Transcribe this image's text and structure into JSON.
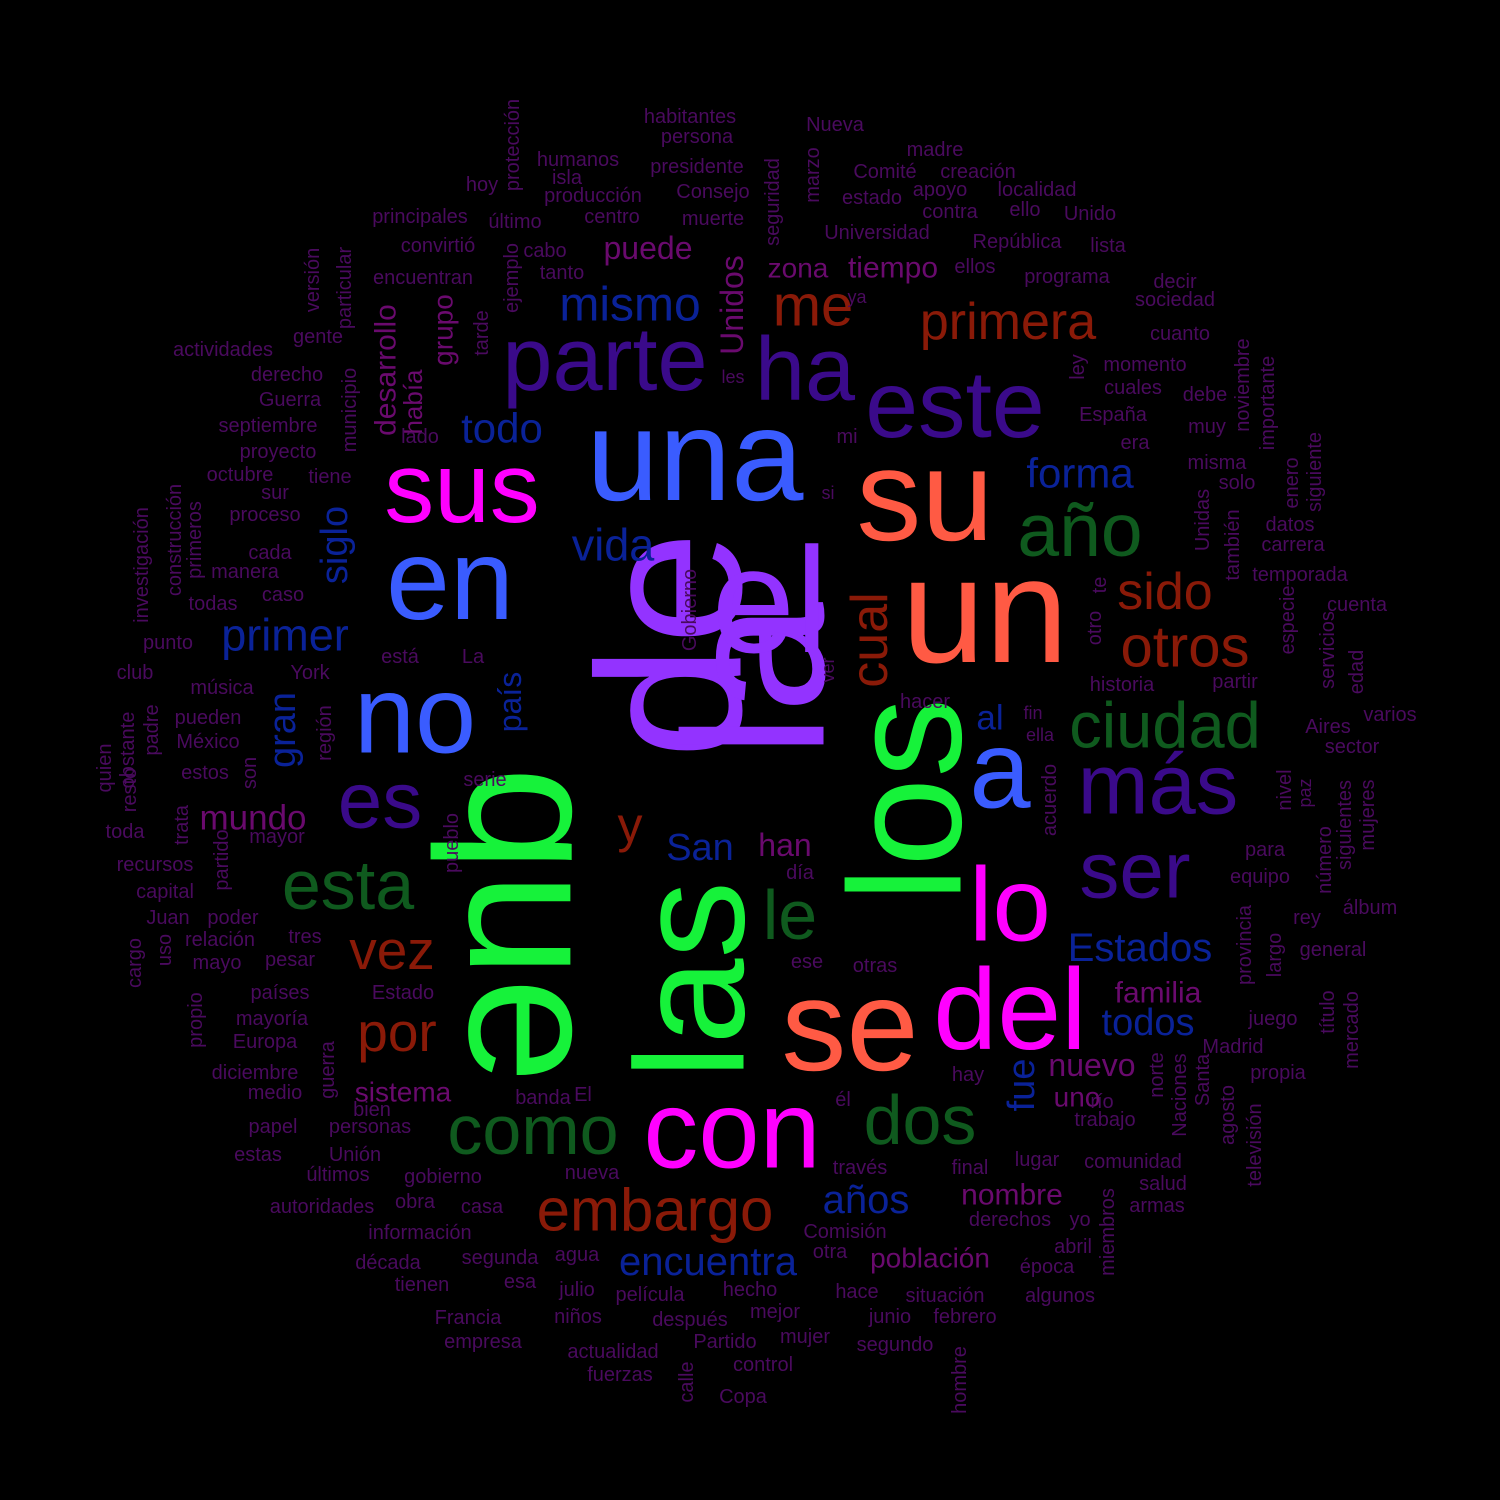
{
  "colors": {
    "background": "#000000",
    "tier1": "#9333ff",
    "tier2": "#16f23a",
    "tier3": "#ff5a44",
    "tier4": "#ff00ff",
    "tier5": "#3a5cff",
    "tier6": "#3a0a8a",
    "tier7": "#0f5a1e",
    "tier8": "#8a1a08",
    "tier9": "#0a2298",
    "tier10": "#6a0a6e",
    "small": "#4a0a5e"
  },
  "words": [
    {
      "text": "de",
      "color": "tier1"
    },
    {
      "text": "la",
      "color": "tier1"
    },
    {
      "text": "el",
      "color": "tier1"
    },
    {
      "text": "que",
      "color": "tier2"
    },
    {
      "text": "los",
      "color": "tier2"
    },
    {
      "text": "las",
      "color": "tier2"
    },
    {
      "text": "un",
      "color": "tier3"
    },
    {
      "text": "su",
      "color": "tier3"
    },
    {
      "text": "se",
      "color": "tier3"
    },
    {
      "text": "del",
      "color": "tier4"
    },
    {
      "text": "con",
      "color": "tier4"
    },
    {
      "text": "lo",
      "color": "tier4"
    },
    {
      "text": "sus",
      "color": "tier4"
    },
    {
      "text": "una",
      "color": "tier5"
    },
    {
      "text": "en",
      "color": "tier5"
    },
    {
      "text": "no",
      "color": "tier5"
    },
    {
      "text": "a",
      "color": "tier5"
    },
    {
      "text": "este",
      "color": "tier6"
    },
    {
      "text": "parte",
      "color": "tier6"
    },
    {
      "text": "ha",
      "color": "tier6"
    },
    {
      "text": "más",
      "color": "tier6"
    },
    {
      "text": "ser",
      "color": "tier6"
    },
    {
      "text": "es",
      "color": "tier6"
    },
    {
      "text": "año",
      "color": "tier7"
    },
    {
      "text": "ciudad",
      "color": "tier7"
    },
    {
      "text": "esta",
      "color": "tier7"
    },
    {
      "text": "como",
      "color": "tier7"
    },
    {
      "text": "dos",
      "color": "tier7"
    },
    {
      "text": "le",
      "color": "tier7"
    },
    {
      "text": "embargo",
      "color": "tier8"
    },
    {
      "text": "primera",
      "color": "tier8"
    },
    {
      "text": "otros",
      "color": "tier8"
    },
    {
      "text": "me",
      "color": "tier8"
    },
    {
      "text": "sido",
      "color": "tier8"
    },
    {
      "text": "vez",
      "color": "tier8"
    },
    {
      "text": "por",
      "color": "tier8"
    },
    {
      "text": "cual",
      "color": "tier8"
    },
    {
      "text": "y",
      "color": "tier8"
    },
    {
      "text": "mismo",
      "color": "tier9"
    },
    {
      "text": "primer",
      "color": "tier9"
    },
    {
      "text": "vida",
      "color": "tier9"
    },
    {
      "text": "todo",
      "color": "tier9"
    },
    {
      "text": "forma",
      "color": "tier9"
    },
    {
      "text": "Estados",
      "color": "tier9"
    },
    {
      "text": "años",
      "color": "tier9"
    },
    {
      "text": "encuentra",
      "color": "tier9"
    },
    {
      "text": "todos",
      "color": "tier9"
    },
    {
      "text": "San",
      "color": "tier9"
    },
    {
      "text": "al",
      "color": "tier9"
    },
    {
      "text": "siglo",
      "color": "tier9"
    },
    {
      "text": "gran",
      "color": "tier9"
    },
    {
      "text": "país",
      "color": "tier9"
    },
    {
      "text": "fue",
      "color": "tier9"
    },
    {
      "text": "mundo",
      "color": "tier10"
    },
    {
      "text": "nuevo",
      "color": "tier10"
    },
    {
      "text": "puede",
      "color": "tier10"
    },
    {
      "text": "tiempo",
      "color": "tier10"
    },
    {
      "text": "zona",
      "color": "tier10"
    },
    {
      "text": "han",
      "color": "tier10"
    },
    {
      "text": "nombre",
      "color": "tier10"
    },
    {
      "text": "población",
      "color": "tier10"
    },
    {
      "text": "familia",
      "color": "tier10"
    },
    {
      "text": "sistema",
      "color": "tier10"
    },
    {
      "text": "uno",
      "color": "tier10"
    },
    {
      "text": "Unidos",
      "color": "tier10"
    },
    {
      "text": "desarrollo",
      "color": "tier10"
    },
    {
      "text": "grupo",
      "color": "tier10"
    },
    {
      "text": "había",
      "color": "tier10"
    },
    {
      "text": "habitantes",
      "color": "small"
    },
    {
      "text": "persona",
      "color": "small"
    },
    {
      "text": "protección",
      "color": "small"
    },
    {
      "text": "Nueva",
      "color": "small"
    },
    {
      "text": "humanos",
      "color": "small"
    },
    {
      "text": "presidente",
      "color": "small"
    },
    {
      "text": "madre",
      "color": "small"
    },
    {
      "text": "Comité",
      "color": "small"
    },
    {
      "text": "creación",
      "color": "small"
    },
    {
      "text": "hoy",
      "color": "small"
    },
    {
      "text": "isla",
      "color": "small"
    },
    {
      "text": "producción",
      "color": "small"
    },
    {
      "text": "Consejo",
      "color": "small"
    },
    {
      "text": "estado",
      "color": "small"
    },
    {
      "text": "apoyo",
      "color": "small"
    },
    {
      "text": "localidad",
      "color": "small"
    },
    {
      "text": "principales",
      "color": "small"
    },
    {
      "text": "último",
      "color": "small"
    },
    {
      "text": "centro",
      "color": "small"
    },
    {
      "text": "muerte",
      "color": "small"
    },
    {
      "text": "contra",
      "color": "small"
    },
    {
      "text": "ello",
      "color": "small"
    },
    {
      "text": "Unido",
      "color": "small"
    },
    {
      "text": "seguridad",
      "color": "small"
    },
    {
      "text": "marzo",
      "color": "small"
    },
    {
      "text": "convirtió",
      "color": "small"
    },
    {
      "text": "cabo",
      "color": "small"
    },
    {
      "text": "Universidad",
      "color": "small"
    },
    {
      "text": "República",
      "color": "small"
    },
    {
      "text": "lista",
      "color": "small"
    },
    {
      "text": "encuentran",
      "color": "small"
    },
    {
      "text": "tanto",
      "color": "small"
    },
    {
      "text": "ellos",
      "color": "small"
    },
    {
      "text": "programa",
      "color": "small"
    },
    {
      "text": "decir",
      "color": "small"
    },
    {
      "text": "versión",
      "color": "small"
    },
    {
      "text": "particular",
      "color": "small"
    },
    {
      "text": "ejemplo",
      "color": "small"
    },
    {
      "text": "ya",
      "color": "small"
    },
    {
      "text": "sociedad",
      "color": "small"
    },
    {
      "text": "gente",
      "color": "small"
    },
    {
      "text": "tarde",
      "color": "small"
    },
    {
      "text": "cuanto",
      "color": "small"
    },
    {
      "text": "actividades",
      "color": "small"
    },
    {
      "text": "municipio",
      "color": "small"
    },
    {
      "text": "momento",
      "color": "small"
    },
    {
      "text": "noviembre",
      "color": "small"
    },
    {
      "text": "derecho",
      "color": "small"
    },
    {
      "text": "les",
      "color": "small"
    },
    {
      "text": "ley",
      "color": "small"
    },
    {
      "text": "cuales",
      "color": "small"
    },
    {
      "text": "Guerra",
      "color": "small"
    },
    {
      "text": "debe",
      "color": "small"
    },
    {
      "text": "importante",
      "color": "small"
    },
    {
      "text": "septiembre",
      "color": "small"
    },
    {
      "text": "lado",
      "color": "small"
    },
    {
      "text": "España",
      "color": "small"
    },
    {
      "text": "muy",
      "color": "small"
    },
    {
      "text": "proyecto",
      "color": "small"
    },
    {
      "text": "mi",
      "color": "small"
    },
    {
      "text": "era",
      "color": "small"
    },
    {
      "text": "siguiente",
      "color": "small"
    },
    {
      "text": "octubre",
      "color": "small"
    },
    {
      "text": "tiene",
      "color": "small"
    },
    {
      "text": "misma",
      "color": "small"
    },
    {
      "text": "enero",
      "color": "small"
    },
    {
      "text": "sur",
      "color": "small"
    },
    {
      "text": "solo",
      "color": "small"
    },
    {
      "text": "investigación",
      "color": "small"
    },
    {
      "text": "construcción",
      "color": "small"
    },
    {
      "text": "primeros",
      "color": "small"
    },
    {
      "text": "si",
      "color": "small"
    },
    {
      "text": "también",
      "color": "small"
    },
    {
      "text": "datos",
      "color": "small"
    },
    {
      "text": "proceso",
      "color": "small"
    },
    {
      "text": "Unidas",
      "color": "small"
    },
    {
      "text": "carrera",
      "color": "small"
    },
    {
      "text": "cada",
      "color": "small"
    },
    {
      "text": "manera",
      "color": "small"
    },
    {
      "text": "Gobierno",
      "color": "small"
    },
    {
      "text": "temporada",
      "color": "small"
    },
    {
      "text": "todas",
      "color": "small"
    },
    {
      "text": "caso",
      "color": "small"
    },
    {
      "text": "te",
      "color": "small"
    },
    {
      "text": "especie",
      "color": "small"
    },
    {
      "text": "cuenta",
      "color": "small"
    },
    {
      "text": "punto",
      "color": "small"
    },
    {
      "text": "está",
      "color": "small"
    },
    {
      "text": "La",
      "color": "small"
    },
    {
      "text": "otro",
      "color": "small"
    },
    {
      "text": "servicios",
      "color": "small"
    },
    {
      "text": "club",
      "color": "small"
    },
    {
      "text": "York",
      "color": "small"
    },
    {
      "text": "ver",
      "color": "small"
    },
    {
      "text": "historia",
      "color": "small"
    },
    {
      "text": "partir",
      "color": "small"
    },
    {
      "text": "edad",
      "color": "small"
    },
    {
      "text": "música",
      "color": "small"
    },
    {
      "text": "hacer",
      "color": "small"
    },
    {
      "text": "varios",
      "color": "small"
    },
    {
      "text": "obstante",
      "color": "small"
    },
    {
      "text": "padre",
      "color": "small"
    },
    {
      "text": "pueden",
      "color": "small"
    },
    {
      "text": "región",
      "color": "small"
    },
    {
      "text": "fin",
      "color": "small"
    },
    {
      "text": "ella",
      "color": "small"
    },
    {
      "text": "Aires",
      "color": "small"
    },
    {
      "text": "quien",
      "color": "small"
    },
    {
      "text": "resto",
      "color": "small"
    },
    {
      "text": "México",
      "color": "small"
    },
    {
      "text": "sector",
      "color": "small"
    },
    {
      "text": "estos",
      "color": "small"
    },
    {
      "text": "son",
      "color": "small"
    },
    {
      "text": "serie",
      "color": "small"
    },
    {
      "text": "acuerdo",
      "color": "small"
    },
    {
      "text": "nivel",
      "color": "small"
    },
    {
      "text": "paz",
      "color": "small"
    },
    {
      "text": "mujeres",
      "color": "small"
    },
    {
      "text": "toda",
      "color": "small"
    },
    {
      "text": "trata",
      "color": "small"
    },
    {
      "text": "mayor",
      "color": "small"
    },
    {
      "text": "pueblo",
      "color": "small"
    },
    {
      "text": "siguientes",
      "color": "small"
    },
    {
      "text": "número",
      "color": "small"
    },
    {
      "text": "recursos",
      "color": "small"
    },
    {
      "text": "partido",
      "color": "small"
    },
    {
      "text": "día",
      "color": "small"
    },
    {
      "text": "para",
      "color": "small"
    },
    {
      "text": "capital",
      "color": "small"
    },
    {
      "text": "equipo",
      "color": "small"
    },
    {
      "text": "Juan",
      "color": "small"
    },
    {
      "text": "poder",
      "color": "small"
    },
    {
      "text": "rey",
      "color": "small"
    },
    {
      "text": "álbum",
      "color": "small"
    },
    {
      "text": "relación",
      "color": "small"
    },
    {
      "text": "tres",
      "color": "small"
    },
    {
      "text": "provincia",
      "color": "small"
    },
    {
      "text": "cargo",
      "color": "small"
    },
    {
      "text": "uso",
      "color": "small"
    },
    {
      "text": "mayo",
      "color": "small"
    },
    {
      "text": "pesar",
      "color": "small"
    },
    {
      "text": "ese",
      "color": "small"
    },
    {
      "text": "otras",
      "color": "small"
    },
    {
      "text": "largo",
      "color": "small"
    },
    {
      "text": "general",
      "color": "small"
    },
    {
      "text": "Estado",
      "color": "small"
    },
    {
      "text": "países",
      "color": "small"
    },
    {
      "text": "propio",
      "color": "small"
    },
    {
      "text": "título",
      "color": "small"
    },
    {
      "text": "mercado",
      "color": "small"
    },
    {
      "text": "mayoría",
      "color": "small"
    },
    {
      "text": "juego",
      "color": "small"
    },
    {
      "text": "Europa",
      "color": "small"
    },
    {
      "text": "Madrid",
      "color": "small"
    },
    {
      "text": "guerra",
      "color": "small"
    },
    {
      "text": "diciembre",
      "color": "small"
    },
    {
      "text": "hay",
      "color": "small"
    },
    {
      "text": "propia",
      "color": "small"
    },
    {
      "text": "norte",
      "color": "small"
    },
    {
      "text": "Naciones",
      "color": "small"
    },
    {
      "text": "Santa",
      "color": "small"
    },
    {
      "text": "medio",
      "color": "small"
    },
    {
      "text": "banda",
      "color": "small"
    },
    {
      "text": "El",
      "color": "small"
    },
    {
      "text": "bien",
      "color": "small"
    },
    {
      "text": "él",
      "color": "small"
    },
    {
      "text": "río",
      "color": "small"
    },
    {
      "text": "agosto",
      "color": "small"
    },
    {
      "text": "papel",
      "color": "small"
    },
    {
      "text": "personas",
      "color": "small"
    },
    {
      "text": "trabajo",
      "color": "small"
    },
    {
      "text": "televisión",
      "color": "small"
    },
    {
      "text": "estas",
      "color": "small"
    },
    {
      "text": "Unión",
      "color": "small"
    },
    {
      "text": "lugar",
      "color": "small"
    },
    {
      "text": "comunidad",
      "color": "small"
    },
    {
      "text": "últimos",
      "color": "small"
    },
    {
      "text": "gobierno",
      "color": "small"
    },
    {
      "text": "través",
      "color": "small"
    },
    {
      "text": "final",
      "color": "small"
    },
    {
      "text": "salud",
      "color": "small"
    },
    {
      "text": "nueva",
      "color": "small"
    },
    {
      "text": "autoridades",
      "color": "small"
    },
    {
      "text": "obra",
      "color": "small"
    },
    {
      "text": "casa",
      "color": "small"
    },
    {
      "text": "miembros",
      "color": "small"
    },
    {
      "text": "armas",
      "color": "small"
    },
    {
      "text": "información",
      "color": "small"
    },
    {
      "text": "Comisión",
      "color": "small"
    },
    {
      "text": "derechos",
      "color": "small"
    },
    {
      "text": "yo",
      "color": "small"
    },
    {
      "text": "década",
      "color": "small"
    },
    {
      "text": "segunda",
      "color": "small"
    },
    {
      "text": "agua",
      "color": "small"
    },
    {
      "text": "otra",
      "color": "small"
    },
    {
      "text": "abril",
      "color": "small"
    },
    {
      "text": "tienen",
      "color": "small"
    },
    {
      "text": "esa",
      "color": "small"
    },
    {
      "text": "época",
      "color": "small"
    },
    {
      "text": "julio",
      "color": "small"
    },
    {
      "text": "película",
      "color": "small"
    },
    {
      "text": "hecho",
      "color": "small"
    },
    {
      "text": "hace",
      "color": "small"
    },
    {
      "text": "situación",
      "color": "small"
    },
    {
      "text": "algunos",
      "color": "small"
    },
    {
      "text": "Francia",
      "color": "small"
    },
    {
      "text": "niños",
      "color": "small"
    },
    {
      "text": "después",
      "color": "small"
    },
    {
      "text": "mejor",
      "color": "small"
    },
    {
      "text": "junio",
      "color": "small"
    },
    {
      "text": "febrero",
      "color": "small"
    },
    {
      "text": "empresa",
      "color": "small"
    },
    {
      "text": "Partido",
      "color": "small"
    },
    {
      "text": "mujer",
      "color": "small"
    },
    {
      "text": "segundo",
      "color": "small"
    },
    {
      "text": "actualidad",
      "color": "small"
    },
    {
      "text": "calle",
      "color": "small"
    },
    {
      "text": "control",
      "color": "small"
    },
    {
      "text": "hombre",
      "color": "small"
    },
    {
      "text": "fuerzas",
      "color": "small"
    },
    {
      "text": "Copa",
      "color": "small"
    }
  ]
}
